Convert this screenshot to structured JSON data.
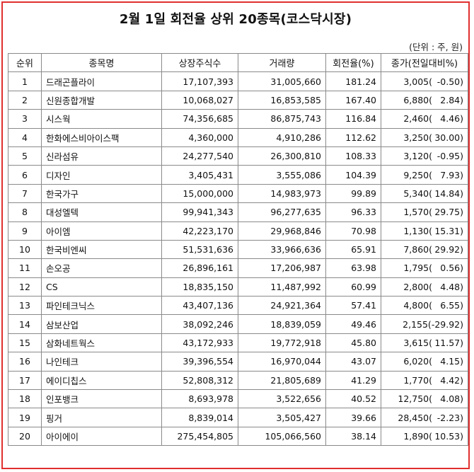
{
  "title": "2월 1일 회전율 상위 20종목(코스닥시장)",
  "unit": "(단위 : 주, 원)",
  "columns": [
    "순위",
    "종목명",
    "상장주식수",
    "거래량",
    "회전율(%)",
    "종가(전일대비%)"
  ],
  "rows": [
    {
      "rank": "1",
      "name": "드래곤플라이",
      "shares": "17,107,393",
      "volume": "31,005,660",
      "turnover": "181.24",
      "price": "3,005(",
      "change": "-0.50)"
    },
    {
      "rank": "2",
      "name": "신원종합개발",
      "shares": "10,068,027",
      "volume": "16,853,585",
      "turnover": "167.40",
      "price": "6,880(",
      "change": "2.84)"
    },
    {
      "rank": "3",
      "name": "시스웍",
      "shares": "74,356,685",
      "volume": "86,875,743",
      "turnover": "116.84",
      "price": "2,460(",
      "change": "4.46)"
    },
    {
      "rank": "4",
      "name": "한화에스비아이스팩",
      "shares": "4,360,000",
      "volume": "4,910,286",
      "turnover": "112.62",
      "price": "3,250(",
      "change": "30.00)"
    },
    {
      "rank": "5",
      "name": "신라섬유",
      "shares": "24,277,540",
      "volume": "26,300,810",
      "turnover": "108.33",
      "price": "3,120(",
      "change": "-0.95)"
    },
    {
      "rank": "6",
      "name": "디자인",
      "shares": "3,405,431",
      "volume": "3,555,086",
      "turnover": "104.39",
      "price": "9,250(",
      "change": "7.93)"
    },
    {
      "rank": "7",
      "name": "한국가구",
      "shares": "15,000,000",
      "volume": "14,983,973",
      "turnover": "99.89",
      "price": "5,340(",
      "change": "14.84)"
    },
    {
      "rank": "8",
      "name": "대성엘텍",
      "shares": "99,941,343",
      "volume": "96,277,635",
      "turnover": "96.33",
      "price": "1,570(",
      "change": "29.75)"
    },
    {
      "rank": "9",
      "name": "아이엠",
      "shares": "42,223,170",
      "volume": "29,968,846",
      "turnover": "70.98",
      "price": "1,130(",
      "change": "15.31)"
    },
    {
      "rank": "10",
      "name": "한국비엔씨",
      "shares": "51,531,636",
      "volume": "33,966,636",
      "turnover": "65.91",
      "price": "7,860(",
      "change": "29.92)"
    },
    {
      "rank": "11",
      "name": "손오공",
      "shares": "26,896,161",
      "volume": "17,206,987",
      "turnover": "63.98",
      "price": "1,795(",
      "change": "0.56)"
    },
    {
      "rank": "12",
      "name": "CS",
      "shares": "18,835,150",
      "volume": "11,487,992",
      "turnover": "60.99",
      "price": "2,800(",
      "change": "4.48)"
    },
    {
      "rank": "13",
      "name": "파인테크닉스",
      "shares": "43,407,136",
      "volume": "24,921,364",
      "turnover": "57.41",
      "price": "4,800(",
      "change": "6.55)"
    },
    {
      "rank": "14",
      "name": "삼보산업",
      "shares": "38,092,246",
      "volume": "18,839,059",
      "turnover": "49.46",
      "price": "2,155(",
      "change": "-29.92)"
    },
    {
      "rank": "15",
      "name": "삼화네트웍스",
      "shares": "43,172,933",
      "volume": "19,772,918",
      "turnover": "45.80",
      "price": "3,615(",
      "change": "11.57)"
    },
    {
      "rank": "16",
      "name": "나인테크",
      "shares": "39,396,554",
      "volume": "16,970,044",
      "turnover": "43.07",
      "price": "6,020(",
      "change": "4.15)"
    },
    {
      "rank": "17",
      "name": "에이디칩스",
      "shares": "52,808,312",
      "volume": "21,805,689",
      "turnover": "41.29",
      "price": "1,770(",
      "change": "4.42)"
    },
    {
      "rank": "18",
      "name": "인포뱅크",
      "shares": "8,693,978",
      "volume": "3,522,656",
      "turnover": "40.52",
      "price": "12,750(",
      "change": "4.08)"
    },
    {
      "rank": "19",
      "name": "핑거",
      "shares": "8,839,014",
      "volume": "3,505,427",
      "turnover": "39.66",
      "price": "28,450(",
      "change": "-2.23)"
    },
    {
      "rank": "20",
      "name": "아이에이",
      "shares": "275,454,805",
      "volume": "105,066,560",
      "turnover": "38.14",
      "price": "1,890(",
      "change": "10.53)"
    }
  ]
}
